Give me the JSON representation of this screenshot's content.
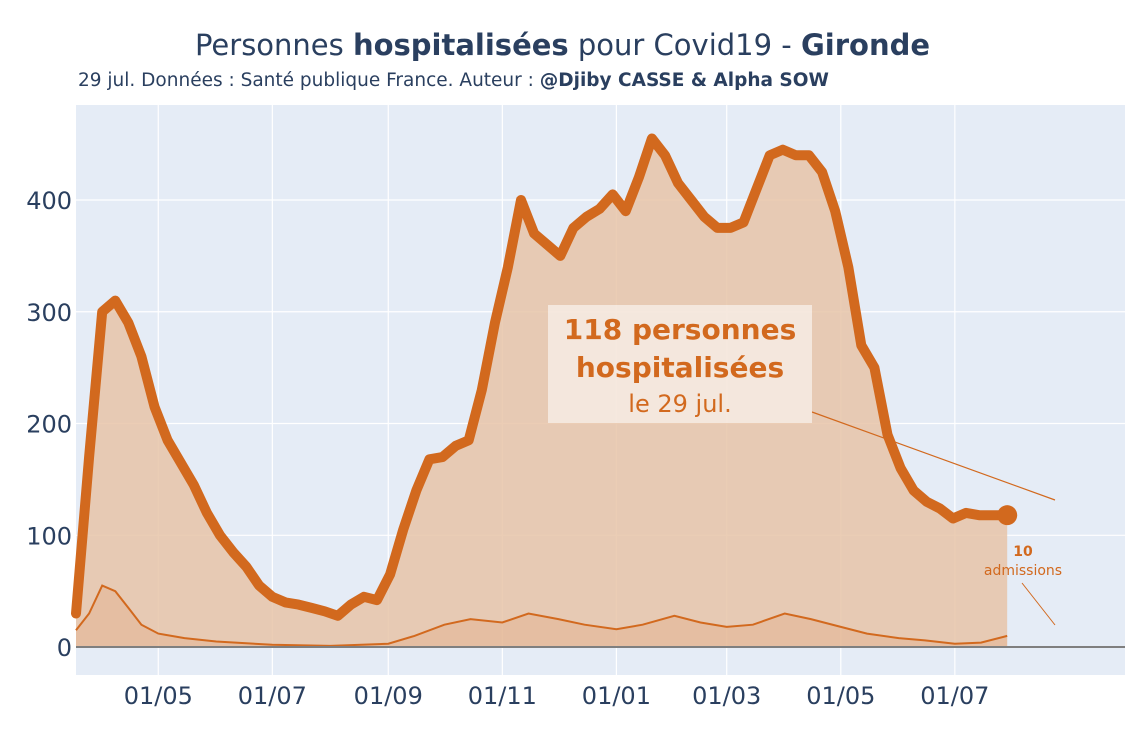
{
  "title": {
    "pre": "Personnes ",
    "bold1": "hospitalisées",
    "mid": " pour Covid19 - ",
    "bold2": "Gironde"
  },
  "subtitle": {
    "pre": "29 jul. Données : Santé publique France. Auteur : ",
    "bold": "@Djiby CASSE & Alpha SOW"
  },
  "colors": {
    "plot_bg": "#e5ecf6",
    "line": "#d2691e",
    "fill": "#e8c4a8",
    "text": "#2a3f5f"
  },
  "chart_data": {
    "type": "area",
    "x_range": [
      "2020-03-18",
      "2021-09-30"
    ],
    "ylim": [
      -25,
      485
    ],
    "y_ticks": [
      0,
      100,
      200,
      300,
      400
    ],
    "x_ticks": [
      {
        "date": "2020-05-01",
        "label": "01/05"
      },
      {
        "date": "2020-07-01",
        "label": "01/07"
      },
      {
        "date": "2020-09-01",
        "label": "01/09"
      },
      {
        "date": "2020-11-01",
        "label": "01/11"
      },
      {
        "date": "2021-01-01",
        "label": "01/01"
      },
      {
        "date": "2021-03-01",
        "label": "01/03"
      },
      {
        "date": "2021-05-01",
        "label": "01/05"
      },
      {
        "date": "2021-07-01",
        "label": "01/07"
      }
    ],
    "series": [
      {
        "type": "area",
        "x": [
          "2020-03-18",
          "2020-03-25",
          "2020-04-01",
          "2020-04-08",
          "2020-04-15",
          "2020-04-22",
          "2020-04-29",
          "2020-05-06",
          "2020-05-13",
          "2020-05-20",
          "2020-05-27",
          "2020-06-03",
          "2020-06-10",
          "2020-06-17",
          "2020-06-24",
          "2020-07-01",
          "2020-07-08",
          "2020-07-15",
          "2020-07-22",
          "2020-07-29",
          "2020-08-05",
          "2020-08-12",
          "2020-08-19",
          "2020-08-26",
          "2020-09-02",
          "2020-09-09",
          "2020-09-16",
          "2020-09-23",
          "2020-09-30",
          "2020-10-07",
          "2020-10-14",
          "2020-10-21",
          "2020-10-28",
          "2020-11-04",
          "2020-11-11",
          "2020-11-18",
          "2020-11-25",
          "2020-12-02",
          "2020-12-09",
          "2020-12-16",
          "2020-12-23",
          "2020-12-30",
          "2021-01-06",
          "2021-01-13",
          "2021-01-20",
          "2021-01-27",
          "2021-02-03",
          "2021-02-10",
          "2021-02-17",
          "2021-02-24",
          "2021-03-03",
          "2021-03-10",
          "2021-03-17",
          "2021-03-24",
          "2021-03-31",
          "2021-04-07",
          "2021-04-14",
          "2021-04-21",
          "2021-04-28",
          "2021-05-05",
          "2021-05-12",
          "2021-05-19",
          "2021-05-26",
          "2021-06-02",
          "2021-06-09",
          "2021-06-16",
          "2021-06-23",
          "2021-06-30",
          "2021-07-07",
          "2021-07-14",
          "2021-07-21",
          "2021-07-29"
        ],
        "y": [
          30,
          170,
          300,
          310,
          290,
          260,
          215,
          185,
          165,
          145,
          120,
          100,
          85,
          72,
          55,
          45,
          40,
          38,
          35,
          32,
          28,
          38,
          45,
          42,
          65,
          105,
          140,
          168,
          170,
          180,
          185,
          230,
          290,
          340,
          400,
          370,
          360,
          350,
          375,
          385,
          392,
          405,
          390,
          420,
          455,
          440,
          415,
          400,
          385,
          375,
          375,
          380,
          410,
          440,
          445,
          440,
          440,
          425,
          390,
          340,
          270,
          250,
          190,
          160,
          140,
          130,
          124,
          115,
          120,
          118,
          118,
          118
        ]
      },
      {
        "type": "line",
        "x": [
          "2020-03-18",
          "2020-03-25",
          "2020-04-01",
          "2020-04-08",
          "2020-04-15",
          "2020-04-22",
          "2020-05-01",
          "2020-05-15",
          "2020-06-01",
          "2020-07-01",
          "2020-08-01",
          "2020-09-01",
          "2020-09-15",
          "2020-10-01",
          "2020-10-15",
          "2020-11-01",
          "2020-11-15",
          "2020-12-01",
          "2020-12-15",
          "2021-01-01",
          "2021-01-15",
          "2021-02-01",
          "2021-02-15",
          "2021-03-01",
          "2021-03-15",
          "2021-04-01",
          "2021-04-15",
          "2021-05-01",
          "2021-05-15",
          "2021-06-01",
          "2021-06-15",
          "2021-07-01",
          "2021-07-15",
          "2021-07-29"
        ],
        "y": [
          15,
          30,
          55,
          50,
          35,
          20,
          12,
          8,
          5,
          2,
          1,
          3,
          10,
          20,
          25,
          22,
          30,
          25,
          20,
          16,
          20,
          28,
          22,
          18,
          20,
          30,
          25,
          18,
          12,
          8,
          6,
          3,
          4,
          10
        ]
      }
    ],
    "last_point": {
      "date": "2021-07-29",
      "value": 118
    },
    "annotations": [
      {
        "line1": "118 personnes",
        "line2": "hospitalisées",
        "line3": "le 29 jul."
      },
      {
        "line1": "10",
        "line2": "admissions"
      }
    ]
  }
}
